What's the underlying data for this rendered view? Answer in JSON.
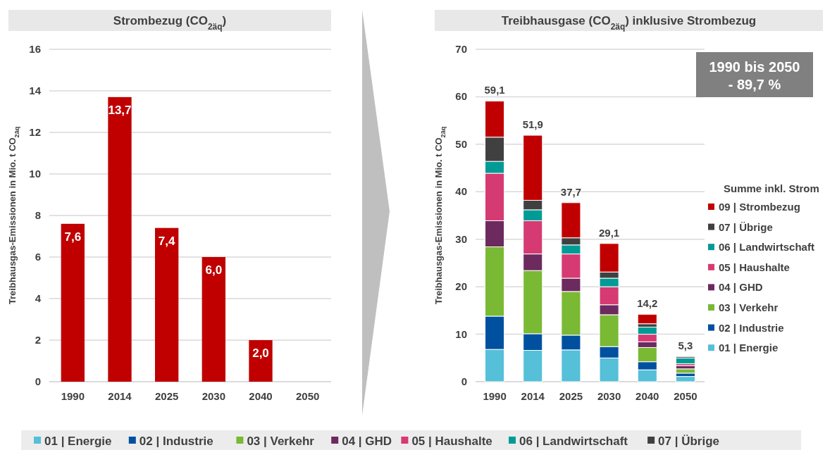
{
  "chart_data": [
    {
      "type": "bar",
      "title": "Strombezug (CO$_{2äq}$)",
      "ylabel": "Treibhausgas-Emissionen in Mio. t CO$_{2äq}$",
      "categories": [
        "1990",
        "2014",
        "2025",
        "2030",
        "2040",
        "2050"
      ],
      "values": [
        7.6,
        13.7,
        7.4,
        6.0,
        2.0,
        0
      ],
      "color": "#c00000",
      "value_labels": [
        "7,6",
        "13,7",
        "7,4",
        "6,0",
        "2,0",
        null
      ],
      "ylim": [
        0,
        16
      ],
      "yticks": [
        0,
        2,
        4,
        6,
        8,
        10,
        12,
        14,
        16
      ],
      "grid": "y",
      "legend": false
    },
    {
      "type": "bar",
      "title": "Treibhausgase (CO$_{2äq}$) inklusive Strombezug",
      "ylabel": "Treibhausgas-Emissionen in Mio. t CO$_{2äq}$",
      "legend_title": "Summe inkl. Strom",
      "stacked": true,
      "categories": [
        "1990",
        "2014",
        "2025",
        "2030",
        "2040",
        "2050"
      ],
      "series": [
        {
          "name": "01 | Energie",
          "color": "#55c0d8",
          "values": [
            6.8,
            6.6,
            6.7,
            5.0,
            2.5,
            1.1
          ]
        },
        {
          "name": "02 | Industrie",
          "color": "#0050a0",
          "values": [
            7.0,
            3.5,
            3.1,
            2.4,
            1.7,
            0.7
          ]
        },
        {
          "name": "03 | Verkehr",
          "color": "#7ab934",
          "values": [
            14.6,
            13.3,
            9.2,
            6.7,
            3.0,
            0.9
          ]
        },
        {
          "name": "04 | GHD",
          "color": "#6c2a5f",
          "values": [
            5.5,
            3.5,
            2.8,
            2.1,
            1.2,
            0.7
          ]
        },
        {
          "name": "05 | Haushalte",
          "color": "#d63a72",
          "values": [
            10.0,
            7.0,
            5.1,
            3.8,
            1.6,
            0.4
          ]
        },
        {
          "name": "06 | Landwirtschaft",
          "color": "#009b95",
          "values": [
            2.5,
            2.3,
            1.9,
            1.8,
            1.5,
            1.2
          ]
        },
        {
          "name": "07 | Übrige",
          "color": "#404040",
          "values": [
            5.1,
            2.0,
            1.5,
            1.3,
            0.7,
            0.3
          ]
        },
        {
          "name": "09 | Strombezug",
          "color": "#c00000",
          "values": [
            7.6,
            13.7,
            7.4,
            6.0,
            2.0,
            0
          ]
        }
      ],
      "totals": [
        "59,1",
        "51,9",
        "37,7",
        "29,1",
        "14,2",
        "5,3"
      ],
      "ylim": [
        0,
        70
      ],
      "yticks": [
        0,
        10,
        20,
        30,
        40,
        50,
        60,
        70
      ],
      "grid": "y",
      "legend": "right",
      "annotations": [
        "1990 bis 2050\n- 89,7 %"
      ]
    }
  ]
}
